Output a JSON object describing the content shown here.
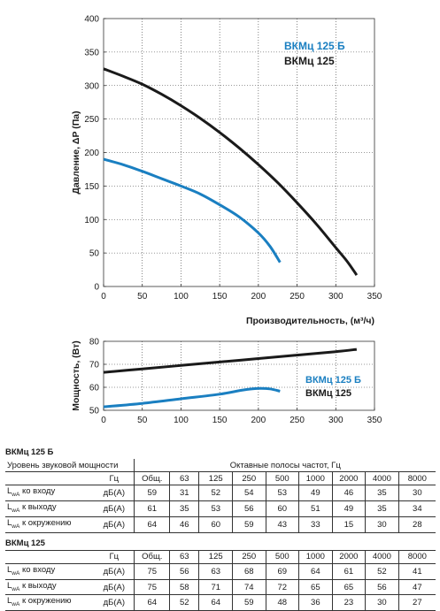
{
  "chart_data": [
    {
      "type": "line",
      "xlabel": "Производительность, (м³/ч)",
      "ylabel": "Давление, ΔP (Па)",
      "xlim": [
        0,
        350
      ],
      "ylim": [
        0,
        400
      ],
      "xticks": [
        0,
        50,
        100,
        150,
        200,
        250,
        300,
        350
      ],
      "yticks": [
        0,
        50,
        100,
        150,
        200,
        250,
        300,
        350,
        400
      ],
      "grid": true,
      "legend_position": "top-right",
      "series": [
        {
          "name": "ВКМц 125 Б",
          "color": "#1a7fc1",
          "x": [
            0,
            25,
            50,
            75,
            100,
            125,
            150,
            175,
            200,
            215,
            228
          ],
          "y": [
            190,
            182,
            172,
            161,
            150,
            138,
            122,
            104,
            80,
            60,
            36
          ]
        },
        {
          "name": "ВКМц 125",
          "color": "#1a1a1a",
          "x": [
            0,
            25,
            50,
            75,
            100,
            125,
            150,
            175,
            200,
            225,
            250,
            275,
            300,
            315,
            327
          ],
          "y": [
            325,
            314,
            302,
            287,
            270,
            251,
            230,
            207,
            182,
            155,
            125,
            93,
            58,
            37,
            17
          ]
        }
      ]
    },
    {
      "type": "line",
      "xlabel": "",
      "ylabel": "Мощность, (Вт)",
      "xlim": [
        0,
        350
      ],
      "ylim": [
        50,
        80
      ],
      "xticks": [
        0,
        50,
        100,
        150,
        200,
        250,
        300,
        350
      ],
      "yticks": [
        50,
        60,
        70,
        80
      ],
      "grid": true,
      "legend_position": "right",
      "series": [
        {
          "name": "ВКМц 125 Б",
          "color": "#1a7fc1",
          "x": [
            0,
            50,
            100,
            150,
            180,
            200,
            215,
            228
          ],
          "y": [
            51.5,
            53,
            55,
            57,
            58.8,
            59.5,
            59.3,
            58.3
          ]
        },
        {
          "name": "ВКМц 125",
          "color": "#1a1a1a",
          "x": [
            0,
            50,
            100,
            150,
            200,
            250,
            300,
            327
          ],
          "y": [
            66.5,
            68,
            69.5,
            71,
            72.5,
            74,
            75.5,
            76.5
          ]
        }
      ]
    }
  ],
  "tables": [
    {
      "title": "ВКМц 125 Б",
      "header": {
        "label": "Уровень звуковой мощности",
        "group_label": "Октавные полосы частот, Гц"
      },
      "columns": [
        "Гц",
        "Общ.",
        "63",
        "125",
        "250",
        "500",
        "1000",
        "2000",
        "4000",
        "8000"
      ],
      "rows": [
        {
          "lw": "L",
          "sub": "wA",
          "label": " ко входу",
          "unit": "дБ(А)",
          "values": [
            "59",
            "31",
            "52",
            "54",
            "53",
            "49",
            "46",
            "35",
            "30"
          ]
        },
        {
          "lw": "L",
          "sub": "wA",
          "label": " к выходу",
          "unit": "дБ(А)",
          "values": [
            "61",
            "35",
            "53",
            "56",
            "60",
            "51",
            "49",
            "35",
            "34"
          ]
        },
        {
          "lw": "L",
          "sub": "wA",
          "label": " к окружению",
          "unit": "дБ(А)",
          "values": [
            "64",
            "46",
            "60",
            "59",
            "43",
            "33",
            "15",
            "30",
            "28"
          ]
        }
      ]
    },
    {
      "title": "ВКМц 125",
      "columns": [
        "Гц",
        "Общ.",
        "63",
        "125",
        "250",
        "500",
        "1000",
        "2000",
        "4000",
        "8000"
      ],
      "rows": [
        {
          "lw": "L",
          "sub": "wA",
          "label": " ко входу",
          "unit": "дБ(А)",
          "values": [
            "75",
            "56",
            "63",
            "68",
            "69",
            "64",
            "61",
            "52",
            "41"
          ]
        },
        {
          "lw": "L",
          "sub": "wA",
          "label": " к выходу",
          "unit": "дБ(А)",
          "values": [
            "75",
            "58",
            "71",
            "74",
            "72",
            "65",
            "65",
            "56",
            "47"
          ]
        },
        {
          "lw": "L",
          "sub": "wA",
          "label": " к окружению",
          "unit": "дБ(А)",
          "values": [
            "64",
            "52",
            "64",
            "59",
            "48",
            "36",
            "23",
            "30",
            "27"
          ]
        }
      ]
    }
  ]
}
